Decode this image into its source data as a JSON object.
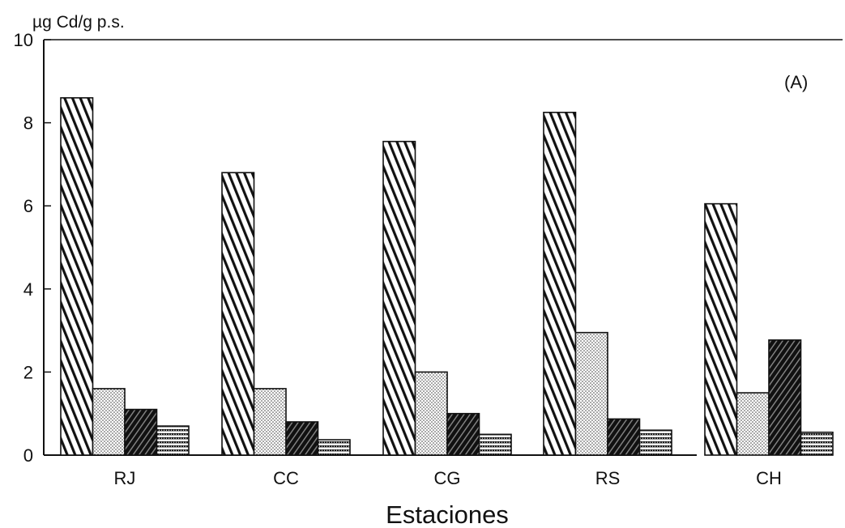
{
  "chart_data": {
    "type": "bar",
    "ylabel": "µg Cd/g p.s.",
    "xlabel": "Estaciones",
    "annotation": "(A)",
    "ylim": [
      0,
      10
    ],
    "yticks": [
      "0",
      "2",
      "4",
      "6",
      "8",
      "10"
    ],
    "categories": [
      "RJ",
      "CC",
      "CG",
      "RS",
      "CH"
    ],
    "series": [
      {
        "values": [
          8.6,
          6.8,
          7.55,
          8.25,
          6.05
        ]
      },
      {
        "values": [
          1.6,
          1.6,
          2.0,
          2.95,
          1.5
        ]
      },
      {
        "values": [
          1.1,
          0.8,
          1.0,
          0.87,
          2.77
        ]
      },
      {
        "values": [
          0.7,
          0.37,
          0.5,
          0.6,
          0.55
        ]
      }
    ],
    "legend": "none",
    "grid": false
  }
}
